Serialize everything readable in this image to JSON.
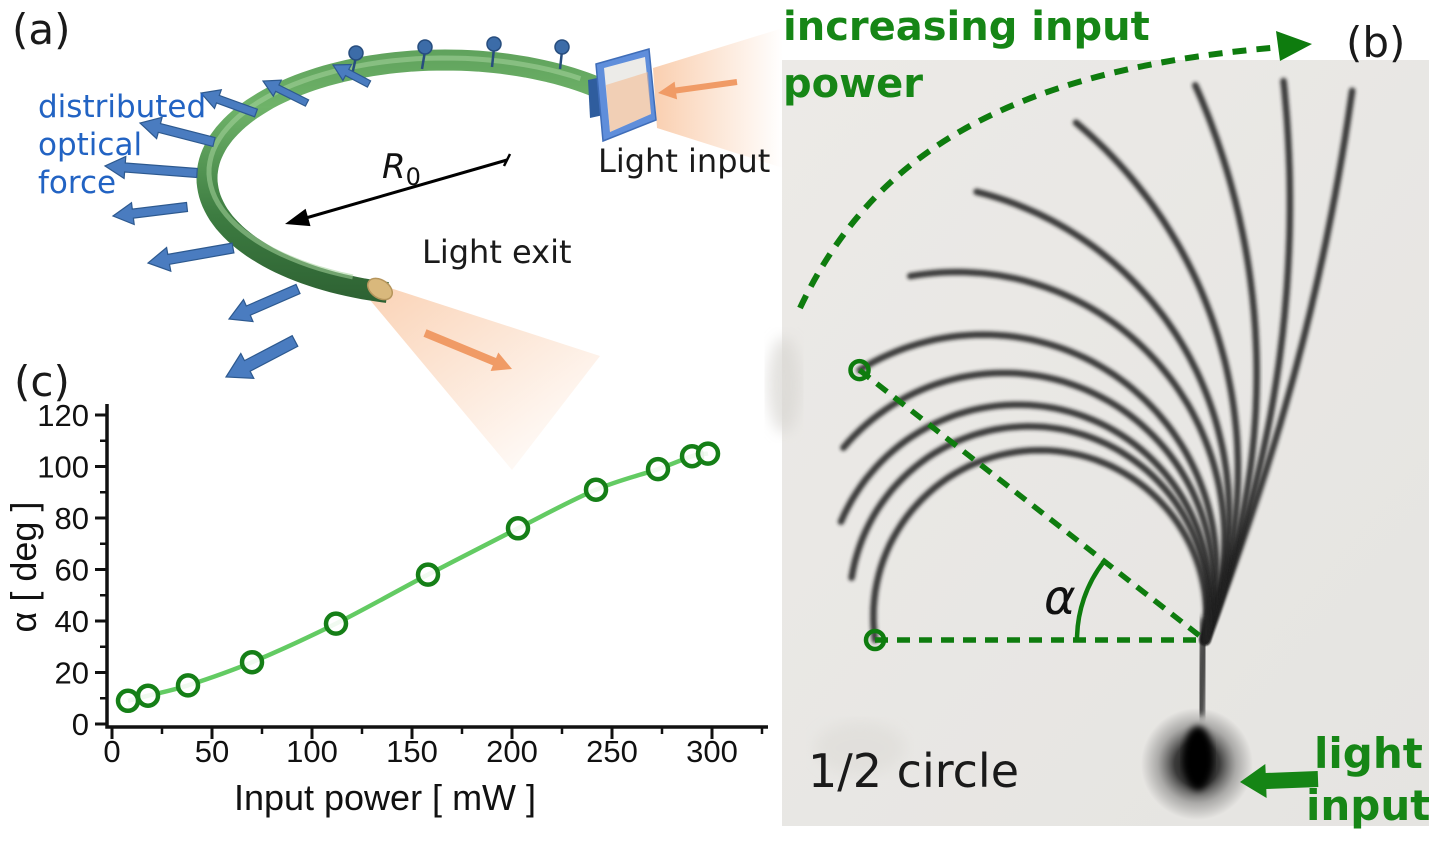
{
  "figure": {
    "panel_a": {
      "label": "(a)",
      "force_lines": [
        "distributed",
        "optical",
        "force"
      ],
      "radius_label": "R",
      "radius_sub": "0",
      "light_input": "Light input",
      "light_exit": "Light exit"
    },
    "panel_b": {
      "label": "(b)",
      "heading_line1": "increasing input",
      "heading_line2": "power",
      "alpha": "α",
      "half_circle": "1/2 circle",
      "light_input_line1": "light",
      "light_input_line2": "input",
      "fibers": {
        "base": [
          1205,
          640
        ],
        "length": 570,
        "shapes": [
          {
            "tilt": 22,
            "bend": 14
          },
          {
            "tilt": 22,
            "bend": 28
          },
          {
            "tilt": 22,
            "bend": 46
          },
          {
            "tilt": 22,
            "bend": 72
          },
          {
            "tilt": 22,
            "bend": 98
          },
          {
            "tilt": 22,
            "bend": 122
          },
          {
            "tilt": 18,
            "bend": 140
          },
          {
            "tilt": 16,
            "bend": 156
          },
          {
            "tilt": 13,
            "bend": 170
          },
          {
            "tilt": 11,
            "bend": 182
          },
          {
            "tilt": 8,
            "bend": 196
          }
        ],
        "circled": [
          6,
          10
        ]
      }
    },
    "panel_c": {
      "label": "(c)"
    },
    "colors": {
      "green_accent": "#168616",
      "green_dash": "#0e7c0e",
      "chart_line": "#63cb63",
      "chart_marker": "#157f17",
      "blue_text": "#2263c3",
      "blue_arrow": "#4a7cc0",
      "blue_arrow_edge": "#2d598f",
      "orange": "#f09b66",
      "photo_bg": "#e9e8e5",
      "fiber_dark": "#222222"
    }
  },
  "chart_data": {
    "type": "line",
    "x": [
      8,
      18,
      38,
      70,
      112,
      158,
      203,
      242,
      273,
      290,
      298
    ],
    "y": [
      9,
      11,
      15,
      24,
      39,
      58,
      76,
      91,
      99,
      104,
      105
    ],
    "xlabel": "Input power [ mW ]",
    "ylabel": "α [ deg ]",
    "xlim": [
      0,
      325
    ],
    "ylim": [
      0,
      120
    ],
    "x_major_ticks": [
      0,
      50,
      100,
      150,
      200,
      250,
      300
    ],
    "y_major_ticks": [
      0,
      20,
      40,
      60,
      80,
      100,
      120
    ],
    "x_minor_ticks": [
      25,
      75,
      125,
      175,
      225,
      275,
      325
    ],
    "y_minor_ticks": [
      10,
      30,
      50,
      70,
      90,
      110
    ],
    "marker": "open-circle",
    "legend": null,
    "grid": false
  }
}
